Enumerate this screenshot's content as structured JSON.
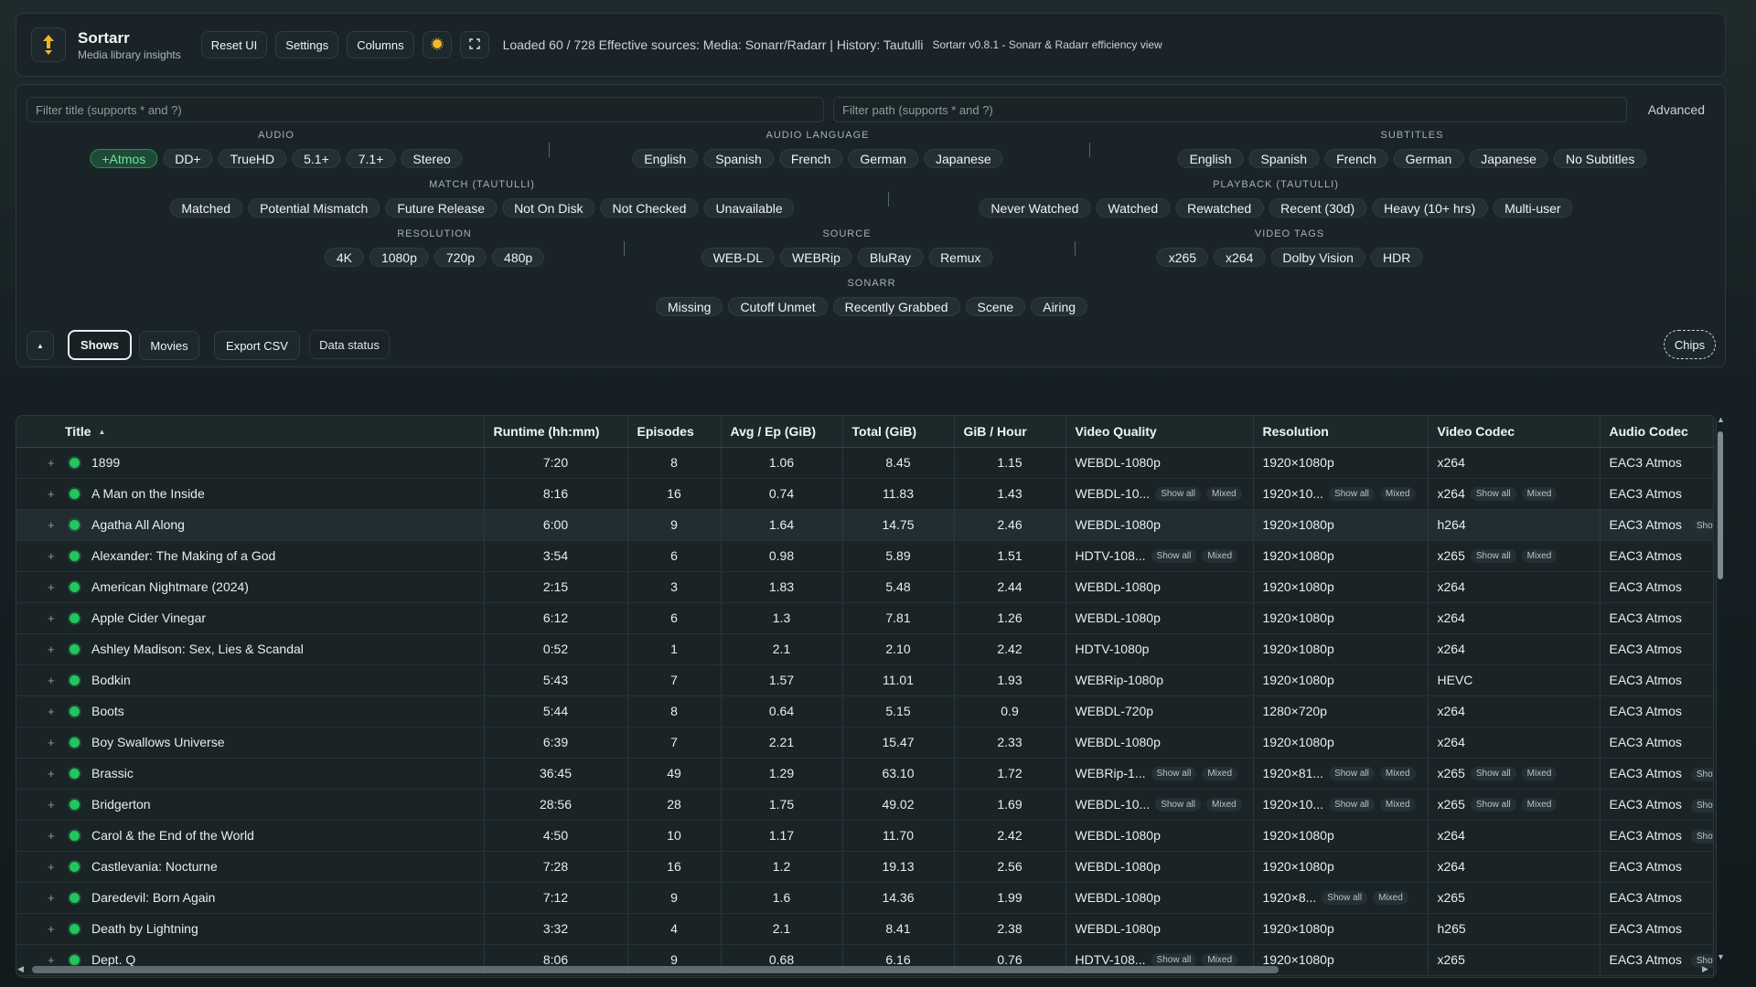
{
  "header": {
    "app_name": "Sortarr",
    "app_subtitle": "Media library insights",
    "buttons": {
      "reset": "Reset UI",
      "settings": "Settings",
      "columns": "Columns"
    },
    "status": "Loaded 60 / 728   Effective sources: Media: Sonarr/Radarr | History: Tautulli",
    "version": "Sortarr v0.8.1 - Sonarr & Radarr efficiency view"
  },
  "filters": {
    "title_placeholder": "Filter title (supports * and ?)",
    "path_placeholder": "Filter path (supports * and ?)",
    "advanced": "Advanced",
    "groups": {
      "audio": {
        "title": "AUDIO",
        "chips": [
          "+Atmos",
          "DD+",
          "TrueHD",
          "5.1+",
          "7.1+",
          "Stereo"
        ]
      },
      "audio_language": {
        "title": "AUDIO LANGUAGE",
        "chips": [
          "English",
          "Spanish",
          "French",
          "German",
          "Japanese"
        ]
      },
      "subtitles": {
        "title": "SUBTITLES",
        "chips": [
          "English",
          "Spanish",
          "French",
          "German",
          "Japanese",
          "No Subtitles"
        ]
      },
      "match": {
        "title": "MATCH (TAUTULLI)",
        "chips": [
          "Matched",
          "Potential Mismatch",
          "Future Release",
          "Not On Disk",
          "Not Checked",
          "Unavailable"
        ]
      },
      "playback": {
        "title": "PLAYBACK (TAUTULLI)",
        "chips": [
          "Never Watched",
          "Watched",
          "Rewatched",
          "Recent (30d)",
          "Heavy (10+ hrs)",
          "Multi-user"
        ]
      },
      "resolution": {
        "title": "RESOLUTION",
        "chips": [
          "4K",
          "1080p",
          "720p",
          "480p"
        ]
      },
      "source": {
        "title": "SOURCE",
        "chips": [
          "WEB-DL",
          "WEBRip",
          "BluRay",
          "Remux"
        ]
      },
      "video_tags": {
        "title": "VIDEO TAGS",
        "chips": [
          "x265",
          "x264",
          "Dolby Vision",
          "HDR"
        ]
      },
      "sonarr": {
        "title": "SONARR",
        "chips": [
          "Missing",
          "Cutoff Unmet",
          "Recently Grabbed",
          "Scene",
          "Airing"
        ]
      }
    },
    "bottom": {
      "collapse": "▲",
      "shows": "Shows",
      "movies": "Movies",
      "export": "Export CSV",
      "data_status": "Data status",
      "chips_toggle": "Chips"
    }
  },
  "table": {
    "columns": [
      "Title",
      "Runtime (hh:mm)",
      "Episodes",
      "Avg / Ep (GiB)",
      "Total (GiB)",
      "GiB / Hour",
      "Video Quality",
      "Resolution",
      "Video Codec",
      "Audio Codec"
    ],
    "mini_labels": {
      "show_all": "Show all",
      "mixed": "Mixed",
      "show_cut": "Shov"
    },
    "rows": [
      {
        "title": "1899",
        "runtime": "7:20",
        "episodes": "8",
        "avg": "1.06",
        "total": "8.45",
        "gph": "1.15",
        "vq": "WEBDL-1080p",
        "res": "1920×1080p",
        "vc": "x264",
        "ac": "EAC3 Atmos"
      },
      {
        "title": "A Man on the Inside",
        "runtime": "8:16",
        "episodes": "16",
        "avg": "0.74",
        "total": "11.83",
        "gph": "1.43",
        "vq": "WEBDL-10...",
        "vq_mixed": true,
        "res": "1920×10...",
        "res_mixed": true,
        "vc": "x264",
        "vc_mixed": true,
        "ac": "EAC3 Atmos"
      },
      {
        "title": "Agatha All Along",
        "runtime": "6:00",
        "episodes": "9",
        "avg": "1.64",
        "total": "14.75",
        "gph": "2.46",
        "vq": "WEBDL-1080p",
        "res": "1920×1080p",
        "vc": "h264",
        "ac": "EAC3 Atmos",
        "ac_cut": true
      },
      {
        "title": "Alexander: The Making of a God",
        "runtime": "3:54",
        "episodes": "6",
        "avg": "0.98",
        "total": "5.89",
        "gph": "1.51",
        "vq": "HDTV-108...",
        "vq_mixed": true,
        "res": "1920×1080p",
        "vc": "x265",
        "vc_mixed": true,
        "ac": "EAC3 Atmos"
      },
      {
        "title": "American Nightmare (2024)",
        "runtime": "2:15",
        "episodes": "3",
        "avg": "1.83",
        "total": "5.48",
        "gph": "2.44",
        "vq": "WEBDL-1080p",
        "res": "1920×1080p",
        "vc": "x264",
        "ac": "EAC3 Atmos"
      },
      {
        "title": "Apple Cider Vinegar",
        "runtime": "6:12",
        "episodes": "6",
        "avg": "1.3",
        "total": "7.81",
        "gph": "1.26",
        "vq": "WEBDL-1080p",
        "res": "1920×1080p",
        "vc": "x264",
        "ac": "EAC3 Atmos"
      },
      {
        "title": "Ashley Madison: Sex, Lies & Scandal",
        "runtime": "0:52",
        "episodes": "1",
        "avg": "2.1",
        "total": "2.10",
        "gph": "2.42",
        "vq": "HDTV-1080p",
        "res": "1920×1080p",
        "vc": "x264",
        "ac": "EAC3 Atmos"
      },
      {
        "title": "Bodkin",
        "runtime": "5:43",
        "episodes": "7",
        "avg": "1.57",
        "total": "11.01",
        "gph": "1.93",
        "vq": "WEBRip-1080p",
        "res": "1920×1080p",
        "vc": "HEVC",
        "ac": "EAC3 Atmos"
      },
      {
        "title": "Boots",
        "runtime": "5:44",
        "episodes": "8",
        "avg": "0.64",
        "total": "5.15",
        "gph": "0.9",
        "vq": "WEBDL-720p",
        "res": "1280×720p",
        "vc": "x264",
        "ac": "EAC3 Atmos"
      },
      {
        "title": "Boy Swallows Universe",
        "runtime": "6:39",
        "episodes": "7",
        "avg": "2.21",
        "total": "15.47",
        "gph": "2.33",
        "vq": "WEBDL-1080p",
        "res": "1920×1080p",
        "vc": "x264",
        "ac": "EAC3 Atmos"
      },
      {
        "title": "Brassic",
        "runtime": "36:45",
        "episodes": "49",
        "avg": "1.29",
        "total": "63.10",
        "gph": "1.72",
        "vq": "WEBRip-1...",
        "vq_mixed": true,
        "res": "1920×81...",
        "res_mixed": true,
        "vc": "x265",
        "vc_mixed": true,
        "ac": "EAC3 Atmos",
        "ac_cut": true
      },
      {
        "title": "Bridgerton",
        "runtime": "28:56",
        "episodes": "28",
        "avg": "1.75",
        "total": "49.02",
        "gph": "1.69",
        "vq": "WEBDL-10...",
        "vq_mixed": true,
        "res": "1920×10...",
        "res_mixed": true,
        "vc": "x265",
        "vc_mixed": true,
        "ac": "EAC3 Atmos",
        "ac_cut": true
      },
      {
        "title": "Carol & the End of the World",
        "runtime": "4:50",
        "episodes": "10",
        "avg": "1.17",
        "total": "11.70",
        "gph": "2.42",
        "vq": "WEBDL-1080p",
        "res": "1920×1080p",
        "vc": "x264",
        "ac": "EAC3 Atmos",
        "ac_cut": true
      },
      {
        "title": "Castlevania: Nocturne",
        "runtime": "7:28",
        "episodes": "16",
        "avg": "1.2",
        "total": "19.13",
        "gph": "2.56",
        "vq": "WEBDL-1080p",
        "res": "1920×1080p",
        "vc": "x264",
        "ac": "EAC3 Atmos"
      },
      {
        "title": "Daredevil: Born Again",
        "runtime": "7:12",
        "episodes": "9",
        "avg": "1.6",
        "total": "14.36",
        "gph": "1.99",
        "vq": "WEBDL-1080p",
        "res": "1920×8...",
        "res_mixed": true,
        "vc": "x265",
        "ac": "EAC3 Atmos"
      },
      {
        "title": "Death by Lightning",
        "runtime": "3:32",
        "episodes": "4",
        "avg": "2.1",
        "total": "8.41",
        "gph": "2.38",
        "vq": "WEBDL-1080p",
        "res": "1920×1080p",
        "vc": "h265",
        "ac": "EAC3 Atmos"
      },
      {
        "title": "Dept. Q",
        "runtime": "8:06",
        "episodes": "9",
        "avg": "0.68",
        "total": "6.16",
        "gph": "0.76",
        "vq": "HDTV-108...",
        "vq_mixed": true,
        "res": "1920×1080p",
        "vc": "x265",
        "ac": "EAC3 Atmos",
        "ac_cut": true
      }
    ]
  },
  "colors": {
    "accent_green": "#22c55e",
    "active_chip": "#6fe4a0",
    "logo_gold": "#f0b429",
    "theme_icon": "#f5b52a"
  },
  "icons": {
    "logo": "sort-arrows-icon",
    "theme": "sun-icon",
    "fullscreen": "fullscreen-icon"
  }
}
